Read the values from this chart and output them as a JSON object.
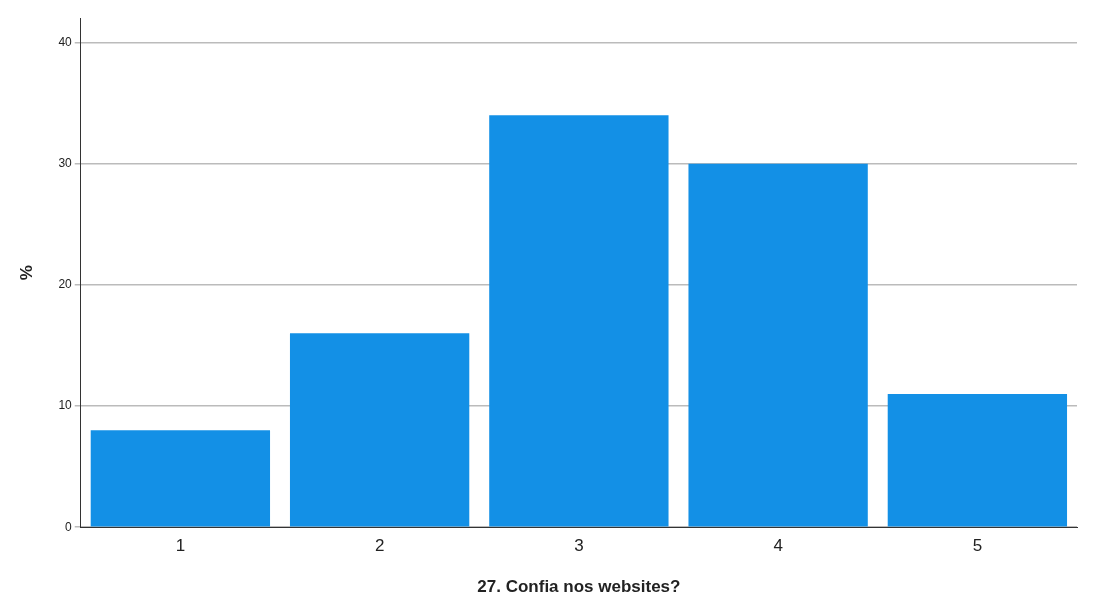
{
  "chart_data": {
    "type": "bar",
    "xlabel": "27. Confia nos websites?",
    "ylabel": "%",
    "categories": [
      "1",
      "2",
      "3",
      "4",
      "5"
    ],
    "values": [
      8,
      16,
      34,
      30,
      11
    ],
    "color": "#1390e6",
    "ylim": [
      0,
      42
    ],
    "yticks": [
      0,
      10,
      20,
      30,
      40
    ],
    "grid": "y",
    "legend": false
  }
}
